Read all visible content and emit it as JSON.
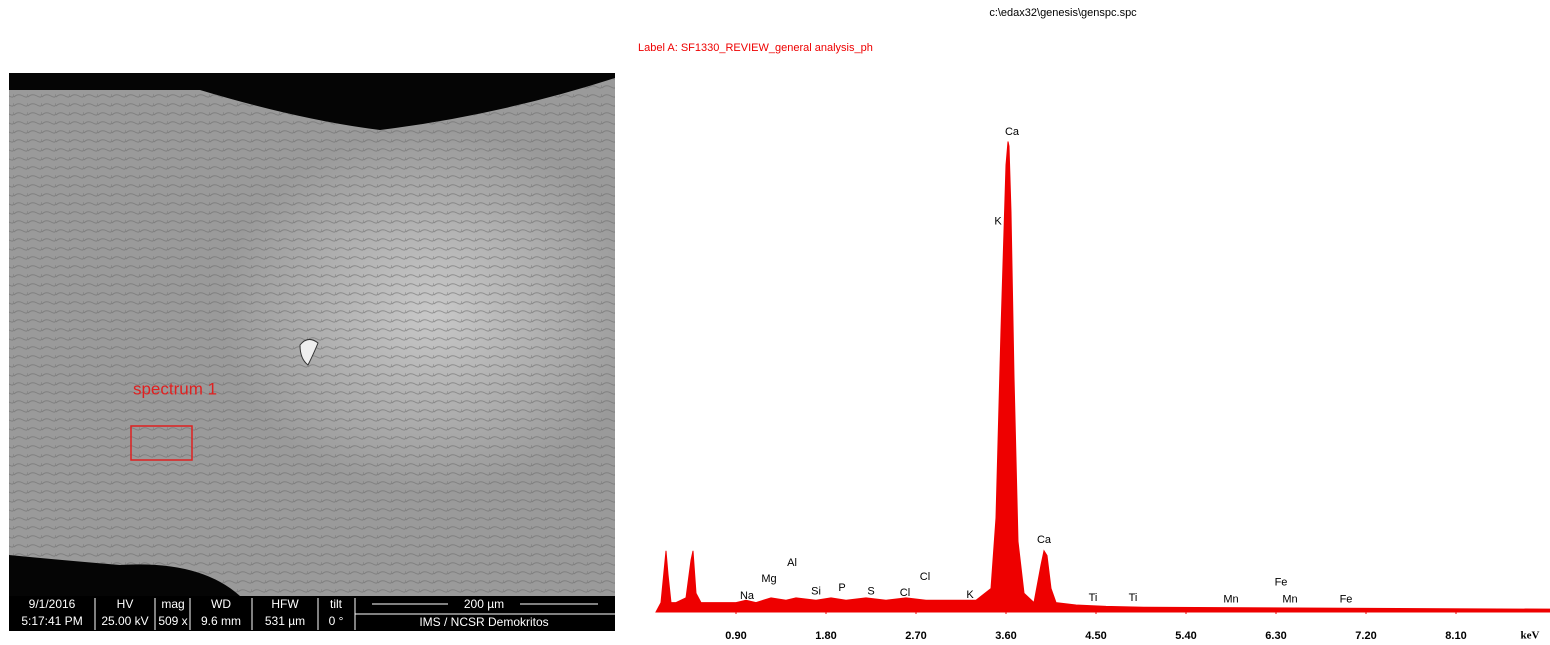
{
  "sem_image": {
    "region_label": "spectrum 1",
    "info_bar": {
      "date": "9/1/2016",
      "time": "5:17:41 PM",
      "hv_label": "HV",
      "hv": "25.00 kV",
      "mag_label": "mag",
      "mag": "509 x",
      "wd_label": "WD",
      "wd": "9.6 mm",
      "hfw_label": "HFW",
      "hfw": "531 µm",
      "tilt_label": "tilt",
      "tilt": "0 °",
      "scale": "200 µm",
      "credit": "IMS / NCSR Demokritos"
    }
  },
  "chart_data": {
    "type": "area",
    "file_path": "c:\\edax32\\genesis\\genspc.spc",
    "title": "Label A: SF1330_REVIEW_general analysis_ph",
    "x_label": "keV",
    "color": "#ee0000",
    "xlim": [
      0,
      9.04
    ],
    "ylim": [
      0,
      105
    ],
    "xticks": [
      {
        "value": 0.9,
        "label": "0.90"
      },
      {
        "value": 1.8,
        "label": "1.80"
      },
      {
        "value": 2.7,
        "label": "2.70"
      },
      {
        "value": 3.6,
        "label": "3.60"
      },
      {
        "value": 4.5,
        "label": "4.50"
      },
      {
        "value": 5.4,
        "label": "5.40"
      },
      {
        "value": 6.3,
        "label": "6.30"
      },
      {
        "value": 7.2,
        "label": "7.20"
      },
      {
        "value": 8.1,
        "label": "8.10"
      }
    ],
    "series": [
      {
        "name": "spectrum 1",
        "color": "#ee0000",
        "x": [
          0.1,
          0.15,
          0.2,
          0.22,
          0.25,
          0.3,
          0.4,
          0.45,
          0.47,
          0.5,
          0.55,
          0.7,
          0.9,
          1.0,
          1.1,
          1.25,
          1.4,
          1.5,
          1.7,
          1.85,
          2.0,
          2.2,
          2.4,
          2.6,
          2.8,
          3.0,
          3.3,
          3.45,
          3.5,
          3.55,
          3.6,
          3.62,
          3.63,
          3.65,
          3.68,
          3.72,
          3.78,
          3.88,
          3.95,
          3.98,
          4.01,
          4.05,
          4.1,
          4.3,
          4.6,
          5.0,
          6.0,
          7.0,
          8.0,
          9.04
        ],
        "values": [
          0,
          2,
          13,
          8,
          2,
          2,
          3,
          11,
          13,
          4,
          2,
          2,
          2,
          2.5,
          2,
          3,
          2.5,
          3,
          2.5,
          3,
          2.5,
          3,
          2.5,
          3,
          2.5,
          2.5,
          2.5,
          5,
          20,
          60,
          95,
          100,
          99,
          85,
          50,
          15,
          4,
          2,
          10,
          13,
          12,
          5,
          2,
          1.5,
          1.2,
          1,
          0.9,
          0.8,
          0.7,
          0.6
        ]
      }
    ],
    "annotations": [
      {
        "text": "Ca",
        "x": 3.66,
        "y": 102
      },
      {
        "text": "K",
        "x": 3.52,
        "y": 83
      },
      {
        "text": "Na",
        "x": 1.01,
        "y": 3.4
      },
      {
        "text": "Mg",
        "x": 1.23,
        "y": 7
      },
      {
        "text": "Al",
        "x": 1.46,
        "y": 10.4
      },
      {
        "text": "Si",
        "x": 1.7,
        "y": 4.3
      },
      {
        "text": "P",
        "x": 1.96,
        "y": 5.1
      },
      {
        "text": "S",
        "x": 2.25,
        "y": 4.3
      },
      {
        "text": "Cl",
        "x": 2.59,
        "y": 4
      },
      {
        "text": "Cl",
        "x": 2.79,
        "y": 7.4
      },
      {
        "text": "K",
        "x": 3.24,
        "y": 3.6
      },
      {
        "text": "Ca",
        "x": 3.98,
        "y": 15.3
      },
      {
        "text": "Ti",
        "x": 4.47,
        "y": 3
      },
      {
        "text": "Ti",
        "x": 4.87,
        "y": 3
      },
      {
        "text": "Mn",
        "x": 5.85,
        "y": 2.6
      },
      {
        "text": "Fe",
        "x": 6.35,
        "y": 6.2
      },
      {
        "text": "Mn",
        "x": 6.44,
        "y": 2.6
      },
      {
        "text": "Fe",
        "x": 7.0,
        "y": 2.6
      }
    ]
  }
}
